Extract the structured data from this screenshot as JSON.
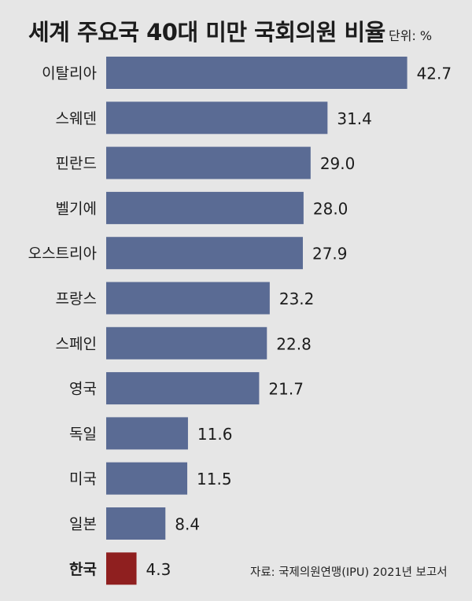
{
  "title": "세계 주요국 40대 미만 국회의원 비율",
  "unit": "단위: %",
  "source": "자료: 국제의원연맹(IPU) 2021년 보고서",
  "colors": {
    "bar": "#5a6b94",
    "highlight": "#8f1f1f",
    "background": "#e6e6e6"
  },
  "chart_data": {
    "type": "bar",
    "orientation": "horizontal",
    "categories": [
      "이탈리아",
      "스웨덴",
      "핀란드",
      "벨기에",
      "오스트리아",
      "프랑스",
      "스페인",
      "영국",
      "독일",
      "미국",
      "일본",
      "한국"
    ],
    "values": [
      42.7,
      31.4,
      29.0,
      28.0,
      27.9,
      23.2,
      22.8,
      21.7,
      11.6,
      11.5,
      8.4,
      4.3
    ],
    "value_labels": [
      "42.7",
      "31.4",
      "29.0",
      "28.0",
      "27.9",
      "23.2",
      "22.8",
      "21.7",
      "11.6",
      "11.5",
      "8.4",
      "4.3"
    ],
    "highlight_category": "한국",
    "title": "세계 주요국 40대 미만 국회의원 비율",
    "xlabel": "",
    "ylabel": "",
    "grid": false,
    "legend": "none"
  }
}
